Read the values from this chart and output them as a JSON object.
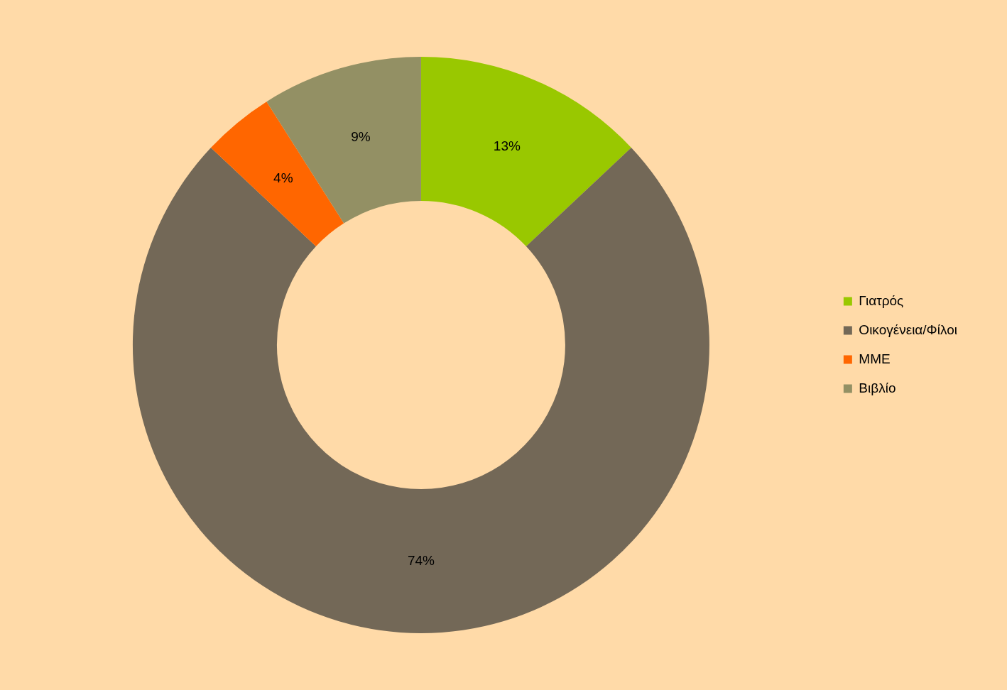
{
  "chart_data": {
    "type": "donut",
    "categories": [
      "Γιατρός",
      "Οικογένεια/Φίλοι",
      "ΜΜΕ",
      "Βιβλίο"
    ],
    "values": [
      13,
      74,
      4,
      9
    ],
    "colors": [
      "#99c800",
      "#736857",
      "#ff6600",
      "#939064"
    ],
    "value_labels": [
      "13%",
      "74%",
      "4%",
      "9%"
    ],
    "legend": "right"
  }
}
